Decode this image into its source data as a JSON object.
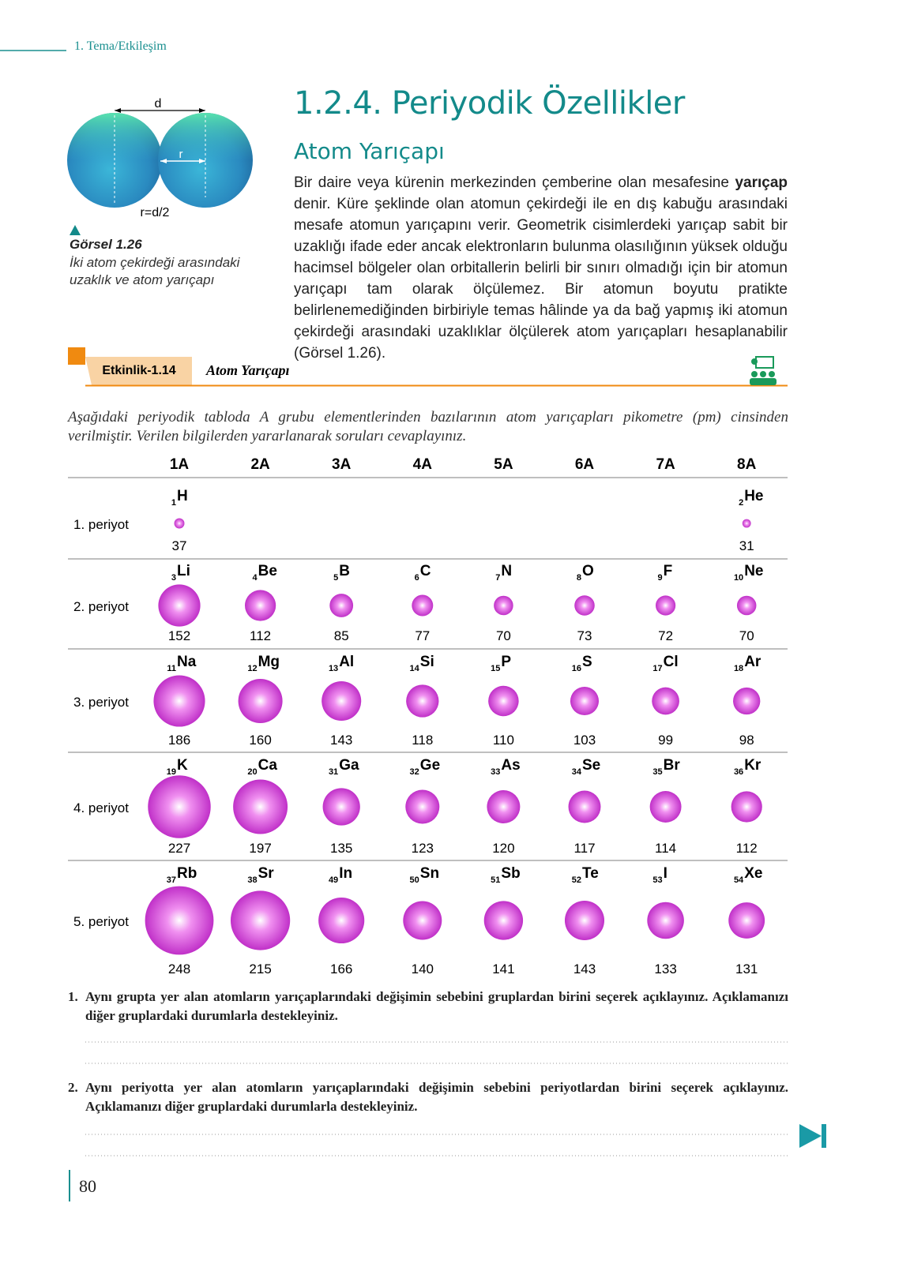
{
  "header": {
    "section": "1. Tema/Etkileşim"
  },
  "title": "1.2.4. Periyodik Özellikler",
  "subtitle": "Atom Yarıçapı",
  "paragraph": {
    "before": "Bir daire veya kürenin merkezinden çemberine olan mesafesine ",
    "bold": "yarıçap",
    "after": " denir. Küre şeklinde olan atomun çekirdeği ile en dış kabuğu arasındaki mesafe atomun yarıçapını verir. Geometrik cisimlerdeki yarıçap sabit bir uzaklığı ifade eder ancak elektronların bulunma olasılığının yüksek olduğu hacimsel bölgeler olan orbitallerin belirli bir sınırı olmadığı için bir atomun yarıçapı tam olarak ölçülemez. Bir atomun boyutu pratikte belirlenemediğinden birbiriyle temas hâlinde ya da bağ yapmış iki atomun çekirdeği arasındaki uzaklıklar ölçülerek atom yarıçapları hesaplanabilir (Görsel 1.26)."
  },
  "figure": {
    "d": "d",
    "r": "r",
    "formula": "r=d/2",
    "label": "Görsel 1.26",
    "caption": "İki atom çekirdeği arasındaki uzaklık ve atom yarıçapı"
  },
  "activity": {
    "label": "Etkinlik-1.14",
    "title": "Atom Yarıçapı"
  },
  "instructions": "Aşağıdaki periyodik tabloda A grubu elementlerinden bazılarının atom yarıçapları pikometre (pm) cinsinden verilmiştir. Verilen bilgilerden yararlanarak soruları cevaplayınız.",
  "table": {
    "groups": [
      "1A",
      "2A",
      "3A",
      "4A",
      "5A",
      "6A",
      "7A",
      "8A"
    ],
    "periods": [
      {
        "label": "1. periyot",
        "elements": [
          {
            "number": 1,
            "symbol": "H",
            "radius": 37
          },
          null,
          null,
          null,
          null,
          null,
          null,
          {
            "number": 2,
            "symbol": "He",
            "radius": 31
          }
        ]
      },
      {
        "label": "2. periyot",
        "elements": [
          {
            "number": 3,
            "symbol": "Li",
            "radius": 152
          },
          {
            "number": 4,
            "symbol": "Be",
            "radius": 112
          },
          {
            "number": 5,
            "symbol": "B",
            "radius": 85
          },
          {
            "number": 6,
            "symbol": "C",
            "radius": 77
          },
          {
            "number": 7,
            "symbol": "N",
            "radius": 70
          },
          {
            "number": 8,
            "symbol": "O",
            "radius": 73
          },
          {
            "number": 9,
            "symbol": "F",
            "radius": 72
          },
          {
            "number": 10,
            "symbol": "Ne",
            "radius": 70
          }
        ]
      },
      {
        "label": "3. periyot",
        "elements": [
          {
            "number": 11,
            "symbol": "Na",
            "radius": 186
          },
          {
            "number": 12,
            "symbol": "Mg",
            "radius": 160
          },
          {
            "number": 13,
            "symbol": "Al",
            "radius": 143
          },
          {
            "number": 14,
            "symbol": "Si",
            "radius": 118
          },
          {
            "number": 15,
            "symbol": "P",
            "radius": 110
          },
          {
            "number": 16,
            "symbol": "S",
            "radius": 103
          },
          {
            "number": 17,
            "symbol": "Cl",
            "radius": 99
          },
          {
            "number": 18,
            "symbol": "Ar",
            "radius": 98
          }
        ]
      },
      {
        "label": "4. periyot",
        "elements": [
          {
            "number": 19,
            "symbol": "K",
            "radius": 227
          },
          {
            "number": 20,
            "symbol": "Ca",
            "radius": 197
          },
          {
            "number": 31,
            "symbol": "Ga",
            "radius": 135
          },
          {
            "number": 32,
            "symbol": "Ge",
            "radius": 123
          },
          {
            "number": 33,
            "symbol": "As",
            "radius": 120
          },
          {
            "number": 34,
            "symbol": "Se",
            "radius": 117
          },
          {
            "number": 35,
            "symbol": "Br",
            "radius": 114
          },
          {
            "number": 36,
            "symbol": "Kr",
            "radius": 112
          }
        ]
      },
      {
        "label": "5. periyot",
        "elements": [
          {
            "number": 37,
            "symbol": "Rb",
            "radius": 248
          },
          {
            "number": 38,
            "symbol": "Sr",
            "radius": 215
          },
          {
            "number": 49,
            "symbol": "In",
            "radius": 166
          },
          {
            "number": 50,
            "symbol": "Sn",
            "radius": 140
          },
          {
            "number": 51,
            "symbol": "Sb",
            "radius": 141
          },
          {
            "number": 52,
            "symbol": "Te",
            "radius": 143
          },
          {
            "number": 53,
            "symbol": "I",
            "radius": 133
          },
          {
            "number": 54,
            "symbol": "Xe",
            "radius": 131
          }
        ]
      }
    ]
  },
  "questions": [
    {
      "number": "1.",
      "text": "Aynı grupta yer alan atomların yarıçaplarındaki değişimin sebebini gruplardan birini seçerek açıklayınız. Açıklamanızı diğer gruplardaki durumlarla destekleyiniz."
    },
    {
      "number": "2.",
      "text": "Aynı periyotta yer alan atomların yarıçaplarındaki değişimin sebebini periyotlardan birini seçerek açıklayınız. Açıklamanızı diğer gruplardaki durumlarla destekleyiniz."
    }
  ],
  "page_number": 80
}
